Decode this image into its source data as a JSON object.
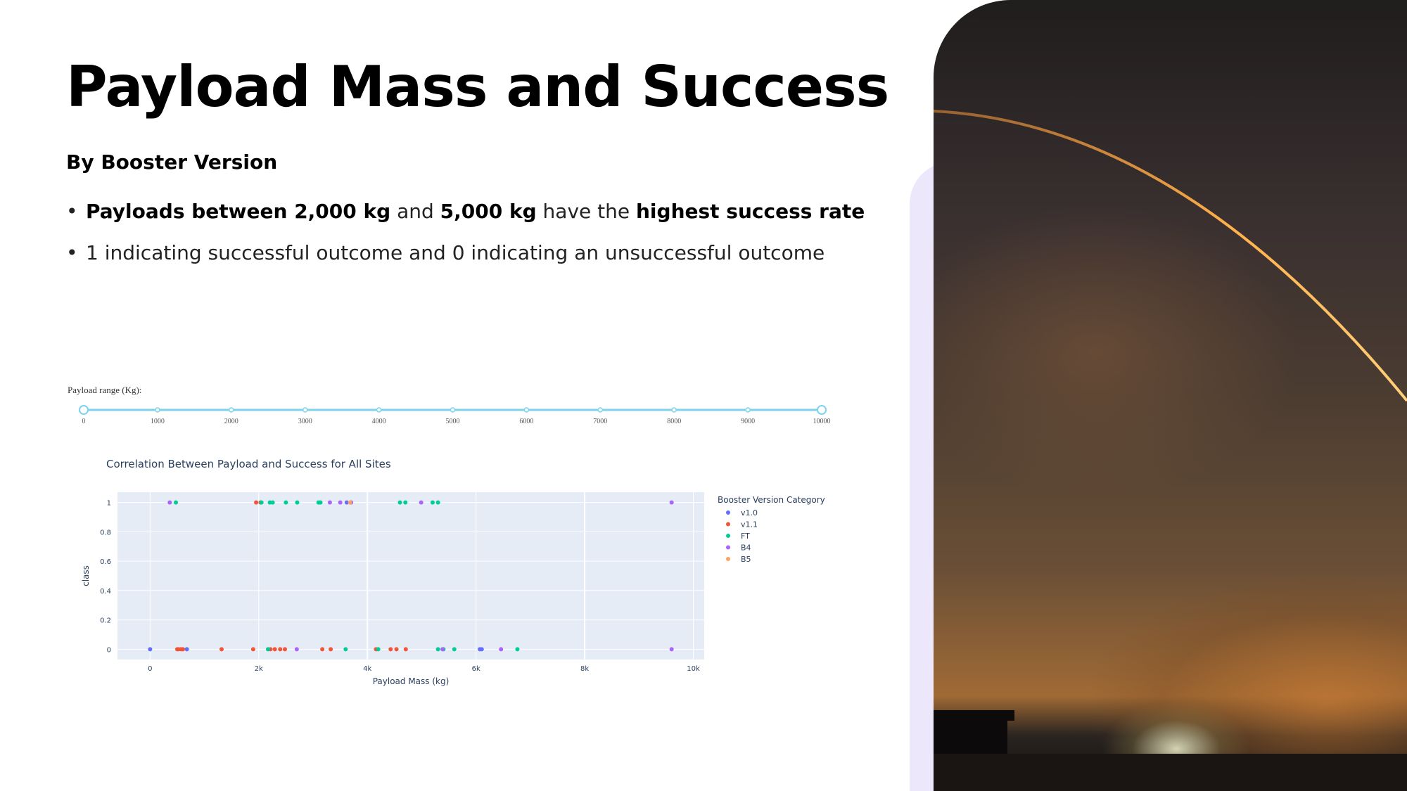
{
  "title": "Payload Mass and Success",
  "subtitle": "By Booster Version",
  "bullets": [
    {
      "segments": [
        {
          "text": "Payloads between 2,000 kg",
          "bold": true
        },
        {
          "text": " and ",
          "bold": false
        },
        {
          "text": "5,000 kg",
          "bold": true
        },
        {
          "text": " have the ",
          "bold": false
        },
        {
          "text": "highest success rate",
          "bold": true
        }
      ]
    },
    {
      "segments": [
        {
          "text": "1 indicating successful outcome and 0 indicating an unsuccessful outcome",
          "bold": false
        }
      ]
    }
  ],
  "slider": {
    "label": "Payload range (Kg):",
    "ticks": [
      "0",
      "1000",
      "2000",
      "3000",
      "4000",
      "5000",
      "6000",
      "7000",
      "8000",
      "9000",
      "10000"
    ],
    "range": [
      0,
      10000
    ],
    "color": "#7fd2ee"
  },
  "chart_data": {
    "type": "scatter",
    "title": "Correlation Between Payload and Success for All Sites",
    "xlabel": "Payload Mass (kg)",
    "ylabel": "class",
    "xlim": [
      -600,
      10200
    ],
    "ylim": [
      -0.07,
      1.07
    ],
    "xticks": [
      {
        "value": 0,
        "label": "0"
      },
      {
        "value": 2000,
        "label": "2k"
      },
      {
        "value": 4000,
        "label": "4k"
      },
      {
        "value": 6000,
        "label": "6k"
      },
      {
        "value": 8000,
        "label": "8k"
      },
      {
        "value": 10000,
        "label": "10k"
      }
    ],
    "yticks": [
      {
        "value": 0,
        "label": "0"
      },
      {
        "value": 0.2,
        "label": "0.2"
      },
      {
        "value": 0.4,
        "label": "0.4"
      },
      {
        "value": 0.6,
        "label": "0.6"
      },
      {
        "value": 0.8,
        "label": "0.8"
      },
      {
        "value": 1,
        "label": "1"
      }
    ],
    "legend_title": "Booster Version Category",
    "legend_position": "right",
    "grid": true,
    "plot_bg": "#e5ecf6",
    "series": [
      {
        "name": "v1.0",
        "color": "#636efa",
        "points": [
          [
            0,
            0
          ],
          [
            677,
            0
          ],
          [
            6070,
            0
          ],
          [
            6105,
            0
          ],
          [
            3620,
            1
          ],
          [
            3700,
            1
          ]
        ]
      },
      {
        "name": "v1.1",
        "color": "#ef553b",
        "points": [
          [
            500,
            0
          ],
          [
            525,
            0
          ],
          [
            570,
            0
          ],
          [
            605,
            0
          ],
          [
            1316,
            0
          ],
          [
            1898,
            0
          ],
          [
            2216,
            0
          ],
          [
            2296,
            0
          ],
          [
            2395,
            0
          ],
          [
            2482,
            0
          ],
          [
            3170,
            0
          ],
          [
            3325,
            0
          ],
          [
            4159,
            0
          ],
          [
            4428,
            0
          ],
          [
            4535,
            0
          ],
          [
            4707,
            0
          ],
          [
            1952,
            1
          ],
          [
            2034,
            1
          ]
        ]
      },
      {
        "name": "FT",
        "color": "#00cc96",
        "points": [
          [
            2170,
            0
          ],
          [
            3600,
            0
          ],
          [
            4200,
            0
          ],
          [
            5300,
            0
          ],
          [
            5400,
            0
          ],
          [
            5600,
            0
          ],
          [
            6761,
            0
          ],
          [
            475,
            1
          ],
          [
            2050,
            1
          ],
          [
            2205,
            1
          ],
          [
            2257,
            1
          ],
          [
            2500,
            1
          ],
          [
            2708,
            1
          ],
          [
            3100,
            1
          ],
          [
            3136,
            1
          ],
          [
            4600,
            1
          ],
          [
            4700,
            1
          ],
          [
            5200,
            1
          ],
          [
            5300,
            1
          ]
        ]
      },
      {
        "name": "B4",
        "color": "#ab63fa",
        "points": [
          [
            2700,
            0
          ],
          [
            5384,
            0
          ],
          [
            6460,
            0
          ],
          [
            9600,
            0
          ],
          [
            362,
            1
          ],
          [
            3310,
            1
          ],
          [
            3500,
            1
          ],
          [
            3696,
            1
          ],
          [
            4990,
            1
          ],
          [
            9600,
            1
          ]
        ]
      },
      {
        "name": "B5",
        "color": "#ffa15a",
        "points": [
          [
            3681,
            1
          ]
        ]
      }
    ]
  }
}
